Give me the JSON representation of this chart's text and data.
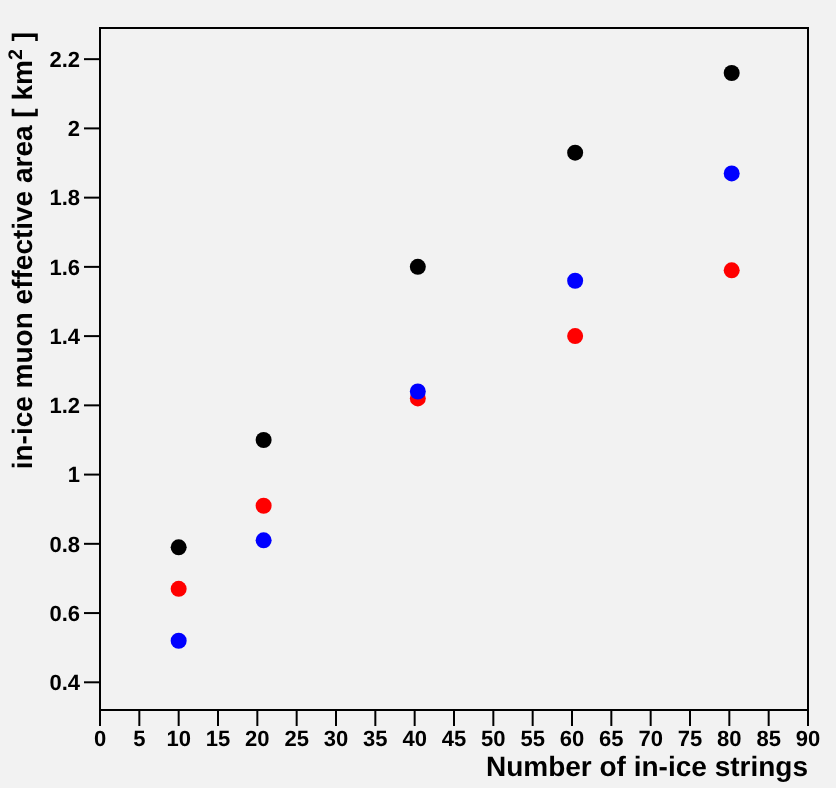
{
  "chart_data": {
    "type": "scatter",
    "xlabel": "Number of in-ice strings",
    "ylabel": "in-ice muon effective area [ km$^{2}$ ]",
    "x": [
      10,
      20.8,
      40.4,
      60.4,
      80.3
    ],
    "series": [
      {
        "color": "#000000",
        "values": [
          0.79,
          1.1,
          1.6,
          1.93,
          2.16
        ]
      },
      {
        "color": "#ff0000",
        "values": [
          0.67,
          0.91,
          1.22,
          1.4,
          1.59
        ]
      },
      {
        "color": "#0000ff",
        "values": [
          0.52,
          0.81,
          1.24,
          1.56,
          1.87
        ]
      }
    ],
    "xlim": [
      0,
      90
    ],
    "xticks": [
      0,
      5,
      10,
      15,
      20,
      25,
      30,
      35,
      40,
      45,
      50,
      55,
      60,
      65,
      70,
      75,
      80,
      85,
      90
    ],
    "ylim": [
      0.32,
      2.29
    ],
    "yticks": [
      0.4,
      0.6,
      0.8,
      1,
      1.2,
      1.4,
      1.6,
      1.8,
      2,
      2.2
    ],
    "marker": "circle",
    "grid": false,
    "legend": false
  }
}
